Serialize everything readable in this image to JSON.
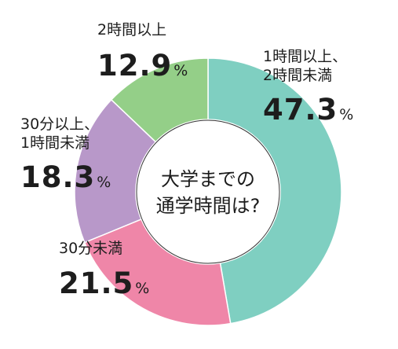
{
  "chart_data": {
    "type": "pie",
    "center_text": [
      "大学までの",
      "通学時間は?"
    ],
    "unit": "%",
    "slices": [
      {
        "label_lines": [
          "1時間以上、",
          "2時間未満"
        ],
        "value": 47.3,
        "value_text": "47.3",
        "color": "#7fcfc1"
      },
      {
        "label_lines": [
          "30分未満"
        ],
        "value": 21.5,
        "value_text": "21.5",
        "color": "#ef86a8"
      },
      {
        "label_lines": [
          "30分以上、",
          "1時間未満"
        ],
        "value": 18.3,
        "value_text": "18.3",
        "color": "#b898c9"
      },
      {
        "label_lines": [
          "2時間以上"
        ],
        "value": 12.9,
        "value_text": "12.9",
        "color": "#94cf88"
      }
    ]
  }
}
